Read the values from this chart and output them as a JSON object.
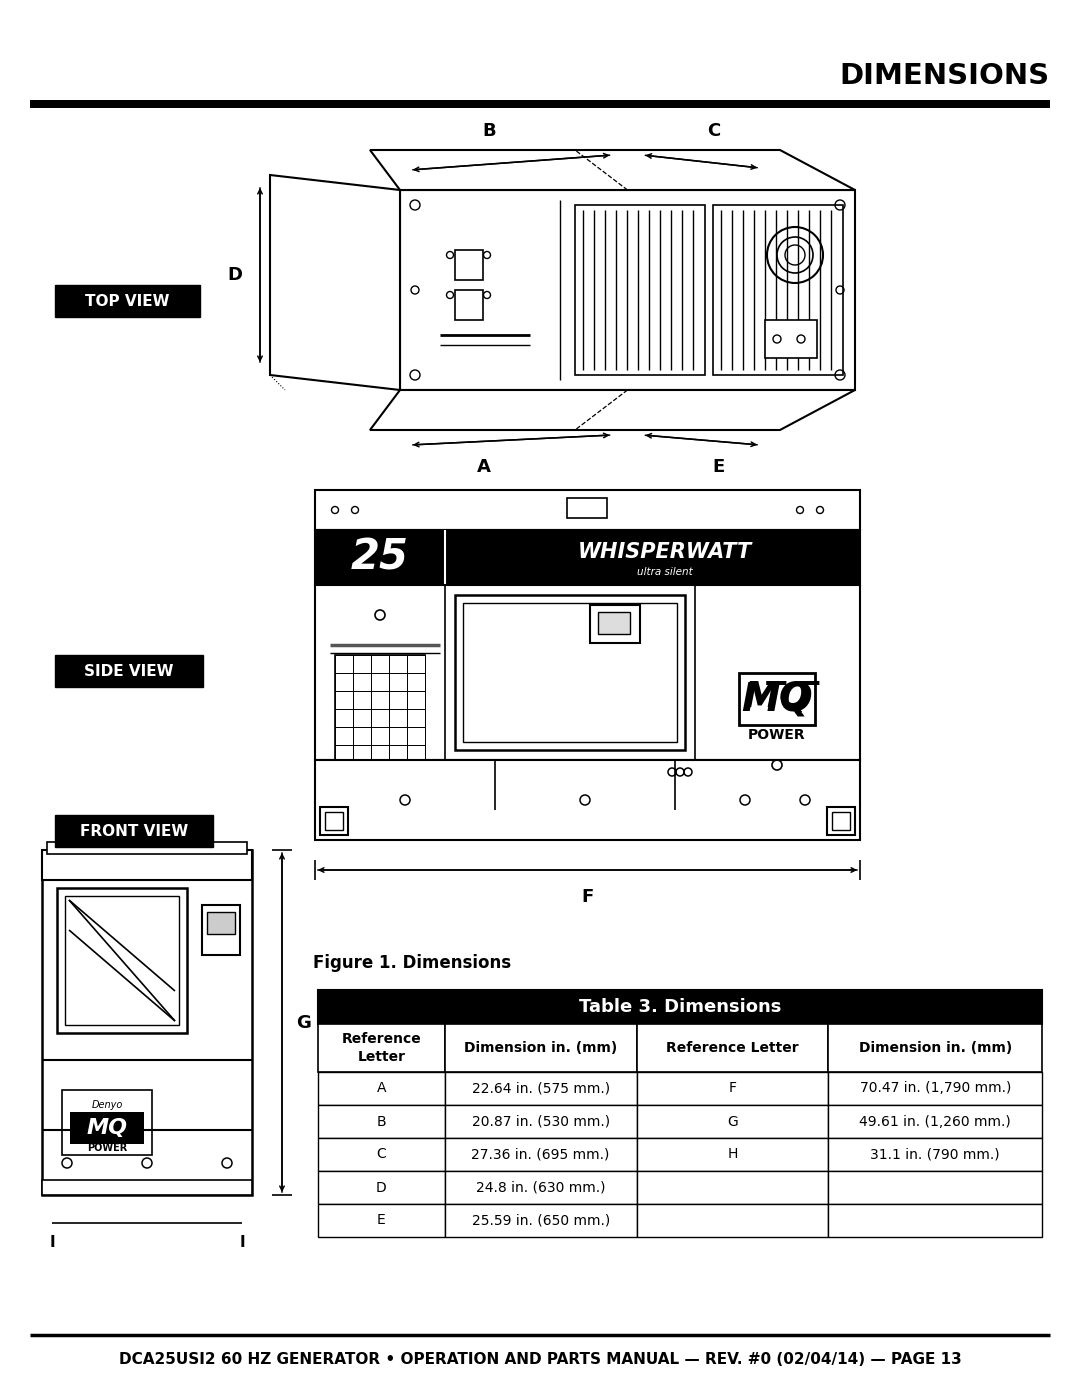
{
  "title": "DIMENSIONS",
  "footer_text": "DCA25USI2 60 HZ GENERATOR • OPERATION AND PARTS MANUAL — REV. #0 (02/04/14) — PAGE 13",
  "figure_caption": "Figure 1. Dimensions",
  "table_title": "Table 3. Dimensions",
  "table_headers": [
    "Reference\nLetter",
    "Dimension in. (mm)",
    "Reference Letter",
    "Dimension in. (mm)"
  ],
  "table_data": [
    [
      "A",
      "22.64 in. (575 mm.)",
      "F",
      "70.47 in. (1,790 mm.)"
    ],
    [
      "B",
      "20.87 in. (530 mm.)",
      "G",
      "49.61 in. (1,260 mm.)"
    ],
    [
      "C",
      "27.36 in. (695 mm.)",
      "H",
      "31.1 in. (790 mm.)"
    ],
    [
      "D",
      "24.8 in. (630 mm.)",
      "",
      ""
    ],
    [
      "E",
      "25.59 in. (650 mm.)",
      "",
      ""
    ]
  ],
  "view_labels": [
    "TOP VIEW",
    "SIDE VIEW",
    "FRONT VIEW"
  ],
  "bg_color": "#ffffff"
}
